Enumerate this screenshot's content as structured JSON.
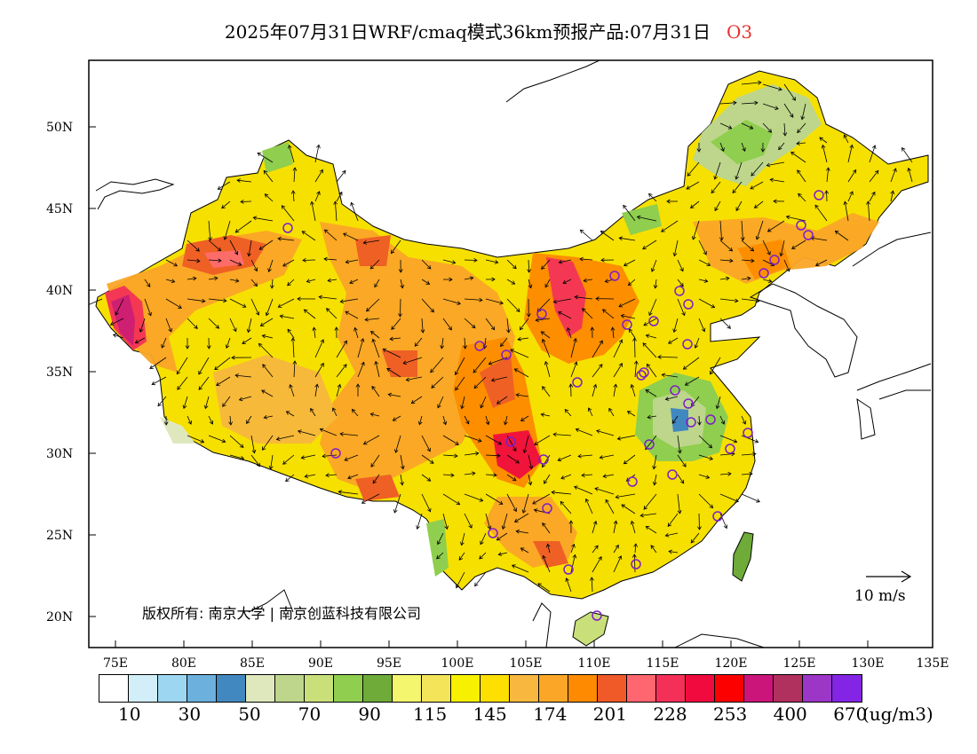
{
  "title": "2025年07月31日WRF/cmaq模式36km预报产品:07月31日",
  "species": "O3",
  "lat_labels": [
    "50N",
    "45N",
    "40N",
    "35N",
    "30N",
    "25N",
    "20N"
  ],
  "lon_labels": [
    "75E",
    "80E",
    "85E",
    "90E",
    "95E",
    "100E",
    "105E",
    "110E",
    "115E",
    "120E",
    "125E",
    "130E",
    "135E"
  ],
  "vector_ref": {
    "label": "10 m/s"
  },
  "copyright": "版权所有: 南京大学 | 南京创蓝科技有限公司",
  "colorbar": {
    "colors": [
      "#ffffff",
      "#d2eef9",
      "#9dd6f0",
      "#6cb0dd",
      "#4188c0",
      "#dfe8bd",
      "#bdd68b",
      "#c9e07a",
      "#8fce4e",
      "#6eab39",
      "#f4f66e",
      "#f3e45a",
      "#f7f000",
      "#fde000",
      "#f8b73e",
      "#fba627",
      "#fd8a00",
      "#ef5a28",
      "#ff6670",
      "#f43058",
      "#f00a3e",
      "#fc0000",
      "#cc157a",
      "#b0305e",
      "#9b36c6",
      "#8425e5"
    ],
    "labels": [
      "10",
      "30",
      "50",
      "70",
      "90",
      "115",
      "145",
      "174",
      "201",
      "228",
      "253",
      "400",
      "670"
    ],
    "unit": "(ug/m3)"
  },
  "stations": 36
}
